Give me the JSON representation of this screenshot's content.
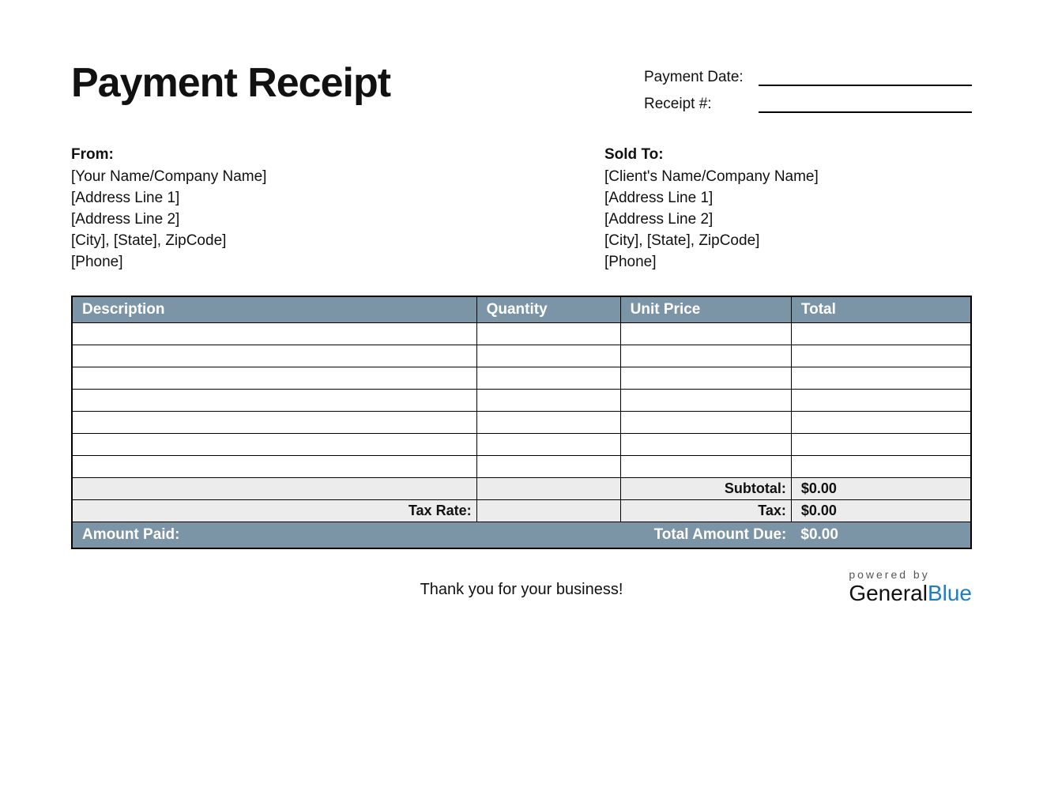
{
  "title": "Payment Receipt",
  "meta": {
    "payment_date_label": "Payment Date:",
    "payment_date_value": "",
    "receipt_no_label": "Receipt #:",
    "receipt_no_value": ""
  },
  "from": {
    "heading": "From:",
    "lines": [
      "[Your Name/Company Name]",
      "[Address Line 1]",
      "[Address Line 2]",
      "[City], [State], ZipCode]",
      "[Phone]"
    ]
  },
  "sold_to": {
    "heading": "Sold To:",
    "lines": [
      "[Client's Name/Company Name]",
      "[Address Line 1]",
      "[Address Line 2]",
      "[City], [State], ZipCode]",
      "[Phone]"
    ]
  },
  "table": {
    "columns": [
      "Description",
      "Quantity",
      "Unit Price",
      "Total"
    ],
    "row_count": 7,
    "header_bg": "#7b94a6",
    "header_fg": "#ffffff",
    "border_color": "#000000",
    "summary_bg": "#ececec"
  },
  "summary": {
    "subtotal_label": "Subtotal:",
    "subtotal_value": "$0.00",
    "tax_rate_label": "Tax Rate:",
    "tax_label": "Tax:",
    "tax_value": "$0.00",
    "amount_paid_label": "Amount Paid:",
    "total_due_label": "Total Amount Due:",
    "total_due_value": "$0.00"
  },
  "footer": {
    "thanks": "Thank you for your business!",
    "powered_by": "powered by",
    "brand_general": "General",
    "brand_blue": "Blue"
  },
  "colors": {
    "accent": "#7b94a6",
    "brand_blue": "#1b7fc4",
    "background": "#ffffff",
    "text": "#111111"
  }
}
